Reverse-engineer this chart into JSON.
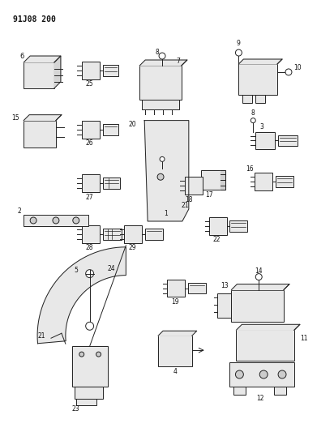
{
  "title": "91J08 200",
  "bg_color": "#ffffff",
  "fig_width": 4.12,
  "fig_height": 5.33,
  "dpi": 100,
  "lw": 0.7,
  "ec": "#222222",
  "fc": "#ffffff",
  "fc_gray": "#e8e8e8"
}
